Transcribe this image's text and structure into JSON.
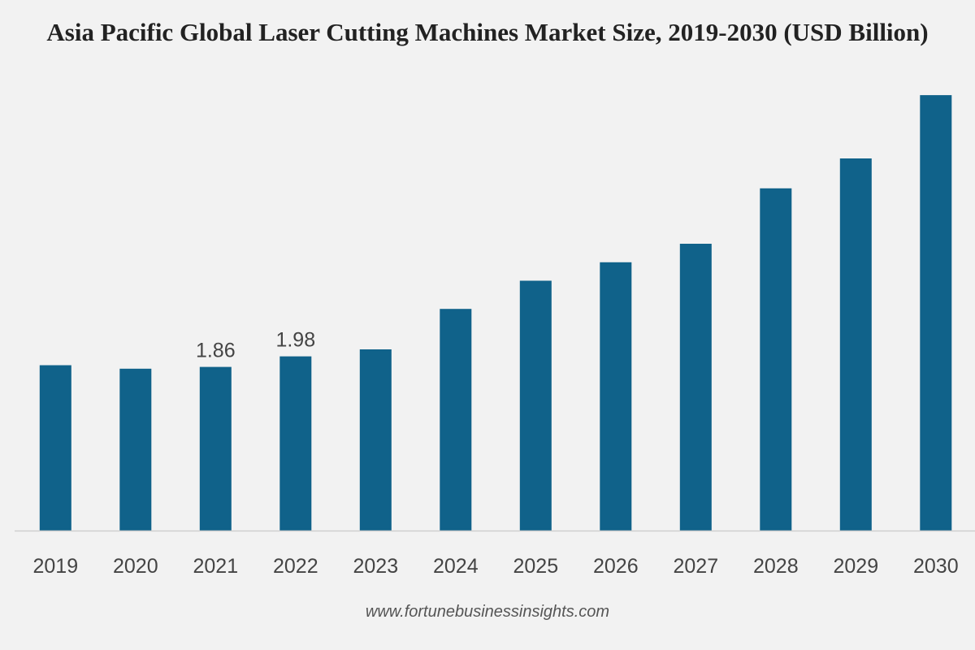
{
  "chart_data": {
    "type": "bar",
    "title": "Asia Pacific Global Laser Cutting Machines Market Size, 2019-2030 (USD Billion)",
    "xlabel": "",
    "ylabel": "",
    "categories": [
      "2019",
      "2020",
      "2021",
      "2022",
      "2023",
      "2024",
      "2025",
      "2026",
      "2027",
      "2028",
      "2029",
      "2030"
    ],
    "values": [
      1.88,
      1.84,
      1.86,
      1.98,
      2.06,
      2.52,
      2.84,
      3.05,
      3.26,
      3.89,
      4.23,
      4.95
    ],
    "data_labels": [
      "",
      "",
      "1.86",
      "1.98",
      "",
      "",
      "",
      "",
      "",
      "",
      "",
      ""
    ],
    "ylim": [
      0,
      5.2
    ],
    "grid": false,
    "legend": "none",
    "bar_color": "#10628a",
    "axis_color": "#cfcfcf"
  },
  "source": "www.fortunebusinessinsights.com"
}
